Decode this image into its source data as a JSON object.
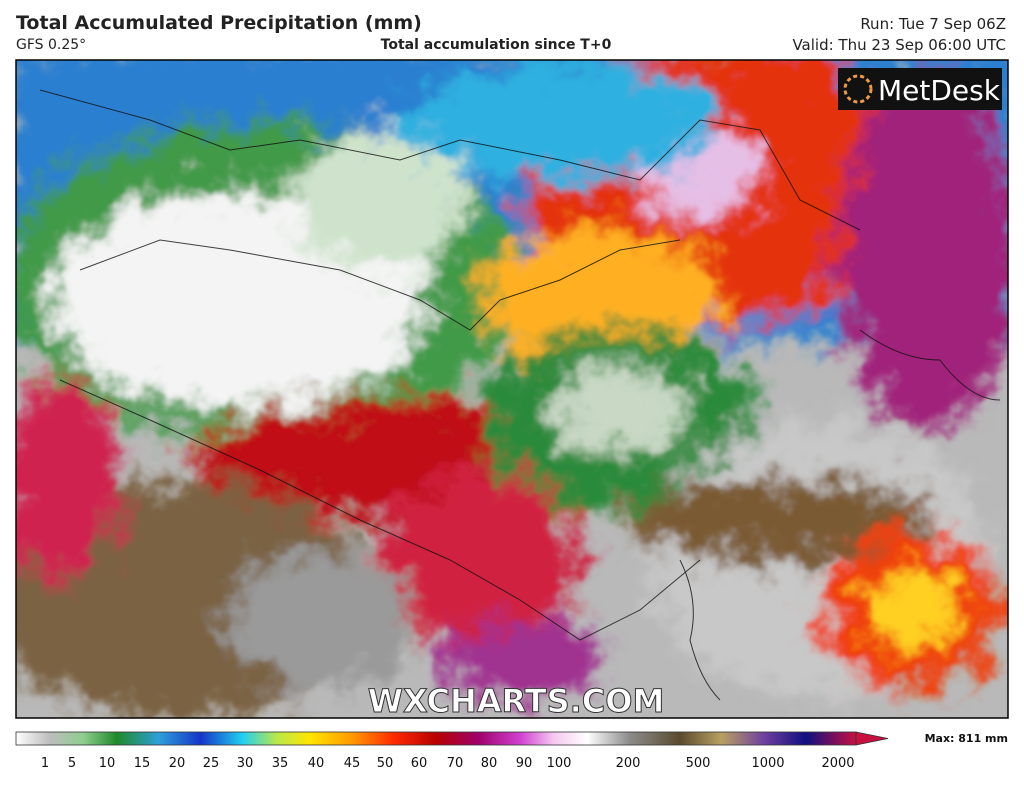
{
  "header": {
    "title": "Total Accumulated Precipitation (mm)",
    "model": "GFS 0.25°",
    "subtitle": "Total accumulation since T+0",
    "run": "Run: Tue 7 Sep 06Z",
    "valid": "Valid: Thu 23 Sep 06:00 UTC"
  },
  "logo": "MetDesk",
  "watermark": "WXCHARTS.COM",
  "colorbar": {
    "ticks": [
      1,
      5,
      10,
      15,
      20,
      25,
      30,
      35,
      40,
      45,
      50,
      60,
      70,
      80,
      90,
      100,
      200,
      500,
      1000,
      2000
    ],
    "max_label": "Max: 811 mm"
  }
}
